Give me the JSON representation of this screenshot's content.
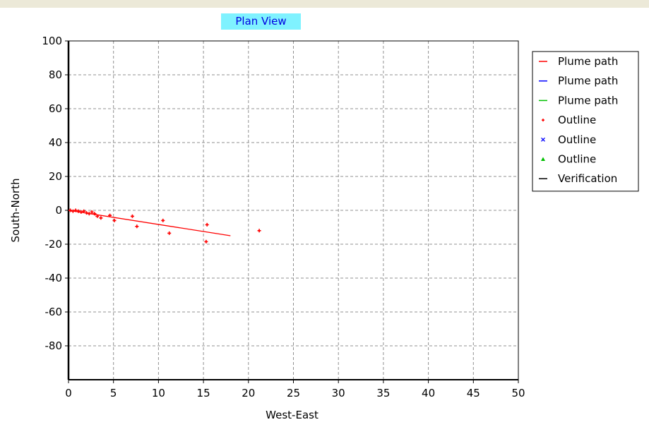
{
  "chart_data": {
    "type": "scatter",
    "title": "Plan View",
    "xlabel": "West-East",
    "ylabel": "South-North",
    "xlim": [
      0,
      50
    ],
    "ylim": [
      -100,
      100
    ],
    "x_ticks": [
      "0",
      "5",
      "10",
      "15",
      "20",
      "25",
      "30",
      "35",
      "40",
      "45",
      "50"
    ],
    "y_ticks": [
      "100",
      "80",
      "60",
      "40",
      "20",
      "0",
      "-20",
      "-40",
      "-60",
      "-80"
    ],
    "grid": true,
    "legend_position": "right",
    "legend": [
      {
        "label": "Plume path",
        "symbol": "line",
        "color": "#ff0000"
      },
      {
        "label": "Plume path",
        "symbol": "line",
        "color": "#0000ff"
      },
      {
        "label": "Plume path",
        "symbol": "line",
        "color": "#00c000"
      },
      {
        "label": "Outline",
        "symbol": "plus",
        "color": "#ff0000"
      },
      {
        "label": "Outline",
        "symbol": "cross",
        "color": "#0000ff"
      },
      {
        "label": "Outline",
        "symbol": "triangle",
        "color": "#00c000"
      },
      {
        "label": "Verification",
        "symbol": "line",
        "color": "#000000"
      }
    ],
    "series": [
      {
        "kind": "line",
        "color": "#ff0000",
        "points": [
          [
            0,
            0
          ],
          [
            18,
            -15
          ]
        ]
      },
      {
        "kind": "points",
        "color": "#ff0000",
        "points": [
          [
            0.2,
            0
          ],
          [
            0.5,
            -0.5
          ],
          [
            0.8,
            0
          ],
          [
            1.1,
            -0.5
          ],
          [
            1.4,
            -1
          ],
          [
            1.7,
            -0.5
          ],
          [
            2.0,
            -1.5
          ],
          [
            2.3,
            -2
          ],
          [
            2.6,
            -1
          ],
          [
            2.9,
            -2
          ],
          [
            3.2,
            -3.5
          ],
          [
            3.6,
            -4.5
          ],
          [
            4.6,
            -3
          ],
          [
            5.1,
            -6
          ],
          [
            7.1,
            -3.5
          ],
          [
            7.6,
            -9.5
          ],
          [
            10.5,
            -6
          ],
          [
            11.2,
            -13.5
          ],
          [
            15.3,
            -18.5
          ],
          [
            15.4,
            -8.5
          ],
          [
            21.2,
            -12
          ]
        ]
      }
    ]
  }
}
